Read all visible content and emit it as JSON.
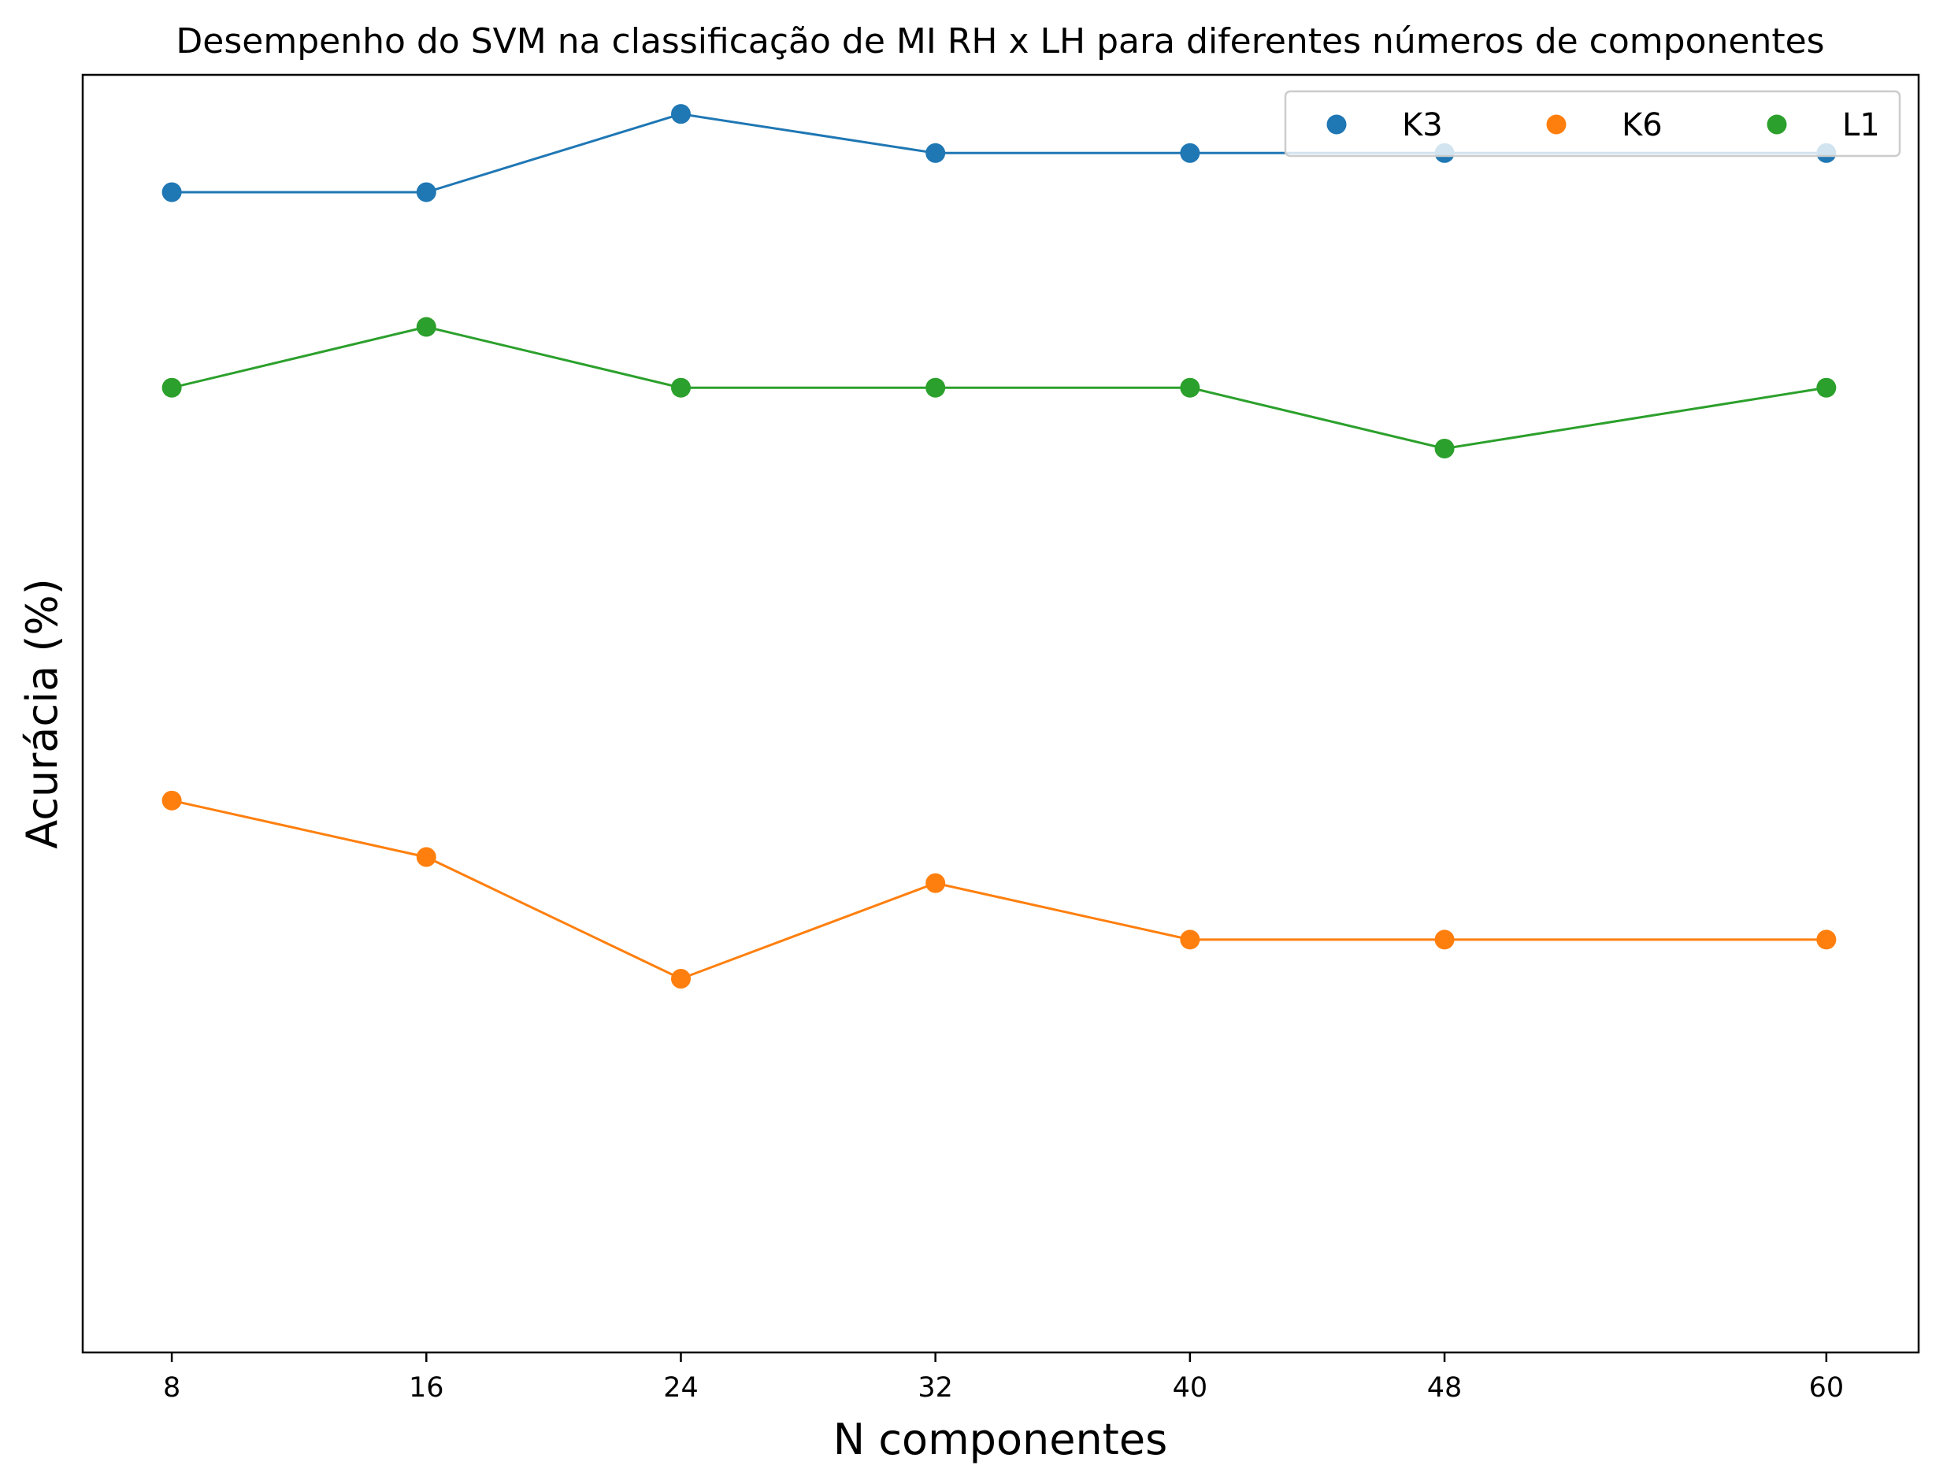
{
  "chart_data": {
    "type": "line",
    "title": "Desempenho do SVM na classificação de MI RH x LH para diferentes números de componentes",
    "xlabel": "N componentes",
    "ylabel": "Acurácia (%)",
    "x": [
      8,
      16,
      24,
      32,
      40,
      48,
      60
    ],
    "x_tick_labels": [
      "8",
      "16",
      "24",
      "32",
      "40",
      "48",
      "60"
    ],
    "xlim": [
      5.2,
      62.9
    ],
    "ylim": [
      47.8,
      77.2
    ],
    "y_ticks_shown": false,
    "grid": false,
    "legend_position": "top-right",
    "series": [
      {
        "name": "K3",
        "color": "#1f77b4",
        "values": [
          74.5,
          74.5,
          76.3,
          75.4,
          75.4,
          75.4,
          75.4
        ]
      },
      {
        "name": "K6",
        "color": "#ff7f0e",
        "values": [
          60.5,
          59.2,
          56.4,
          58.6,
          57.3,
          57.3,
          57.3
        ]
      },
      {
        "name": "L1",
        "color": "#2ca02c",
        "values": [
          70.0,
          71.4,
          70.0,
          70.0,
          70.0,
          68.6,
          70.0
        ]
      }
    ]
  }
}
